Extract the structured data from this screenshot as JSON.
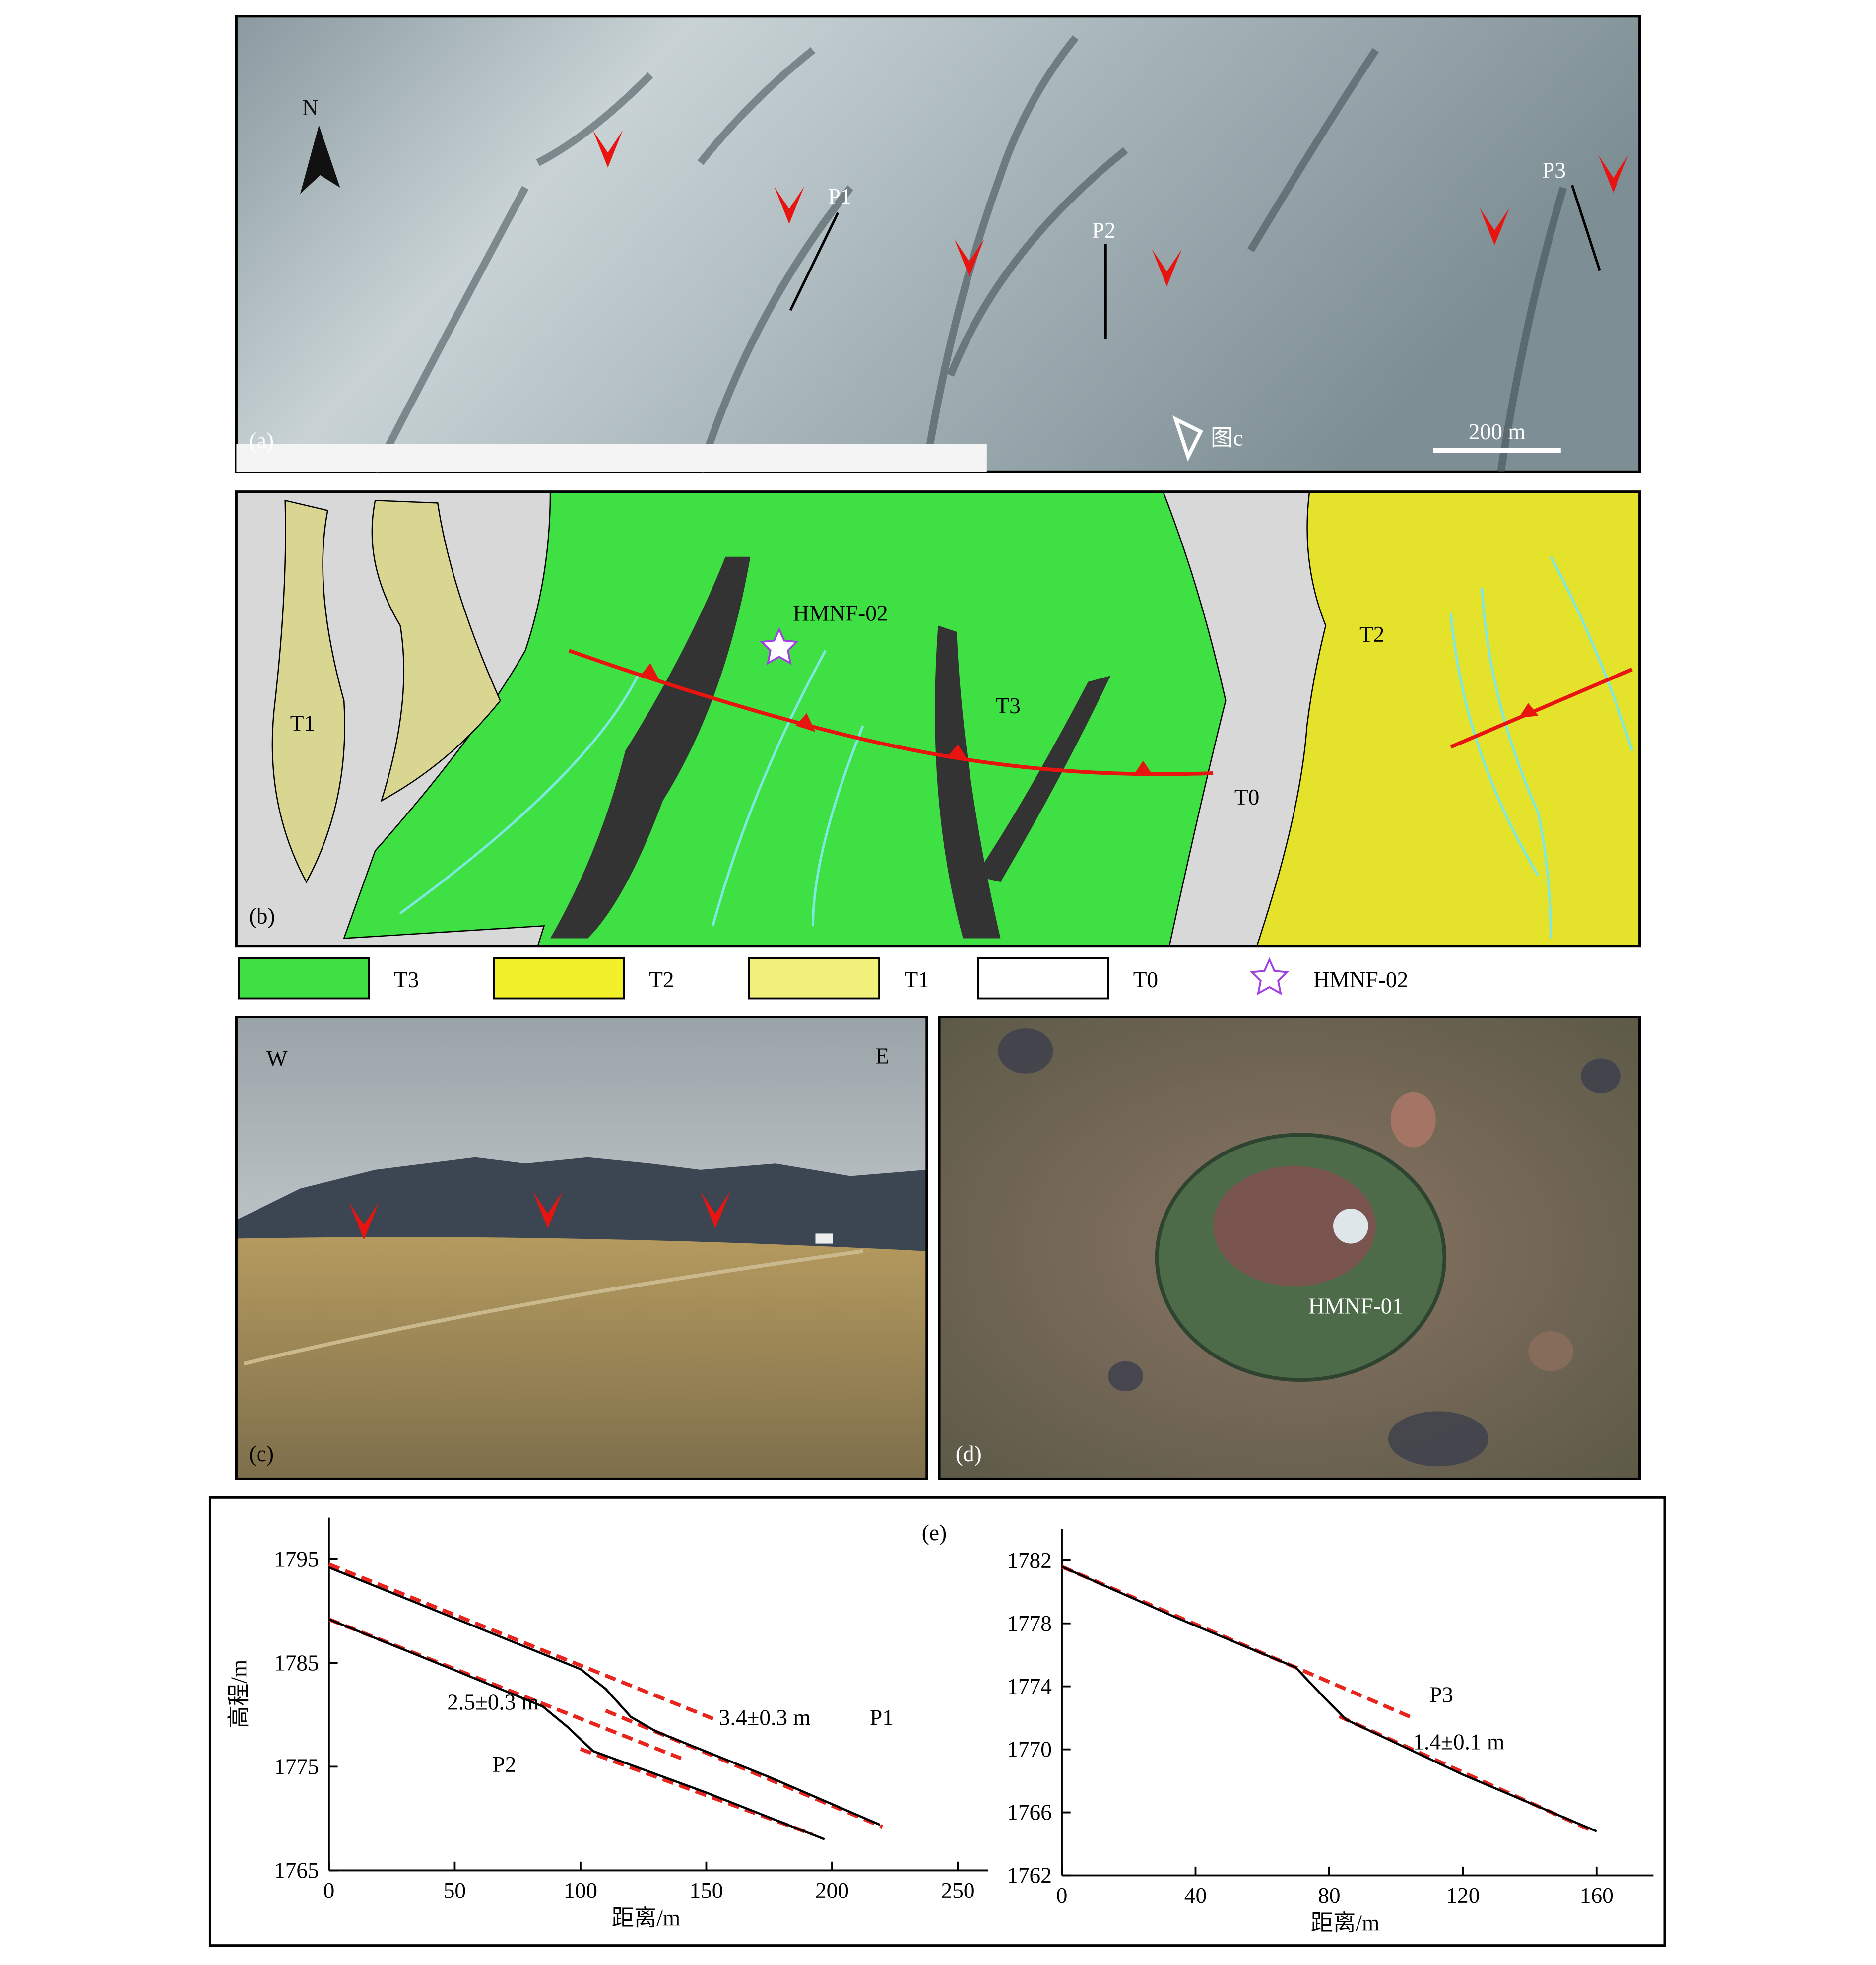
{
  "panels": {
    "a": {
      "label": "(a)",
      "north": "N",
      "profiles": [
        "P1",
        "P2",
        "P3"
      ],
      "photo": "图c",
      "scale": "200 m"
    },
    "b": {
      "label": "(b)",
      "units": [
        "T1",
        "T3",
        "T0",
        "T2"
      ],
      "sample": "HMNF-02"
    },
    "c": {
      "label": "(c)",
      "west": "W",
      "east": "E"
    },
    "d": {
      "label": "(d)",
      "sample": "HMNF-01"
    },
    "e": {
      "label": "(e)"
    }
  },
  "legend": [
    {
      "name": "T3",
      "color": "#3fe043"
    },
    {
      "name": "T2",
      "color": "#f2f02a"
    },
    {
      "name": "T1",
      "color": "#f1f07a"
    },
    {
      "name": "T0",
      "color": "#ffffff"
    },
    {
      "name": "HMNF-02",
      "color": "#a040e0"
    }
  ],
  "chart_data": [
    {
      "type": "line",
      "xlabel": "距离/m",
      "ylabel": "高程/m",
      "xlim": [
        0,
        262
      ],
      "ylim": [
        1765,
        1799
      ],
      "xticks": [
        0,
        50,
        100,
        150,
        200,
        250
      ],
      "yticks": [
        1765,
        1775,
        1785,
        1795
      ],
      "series": [
        {
          "name": "P1",
          "color": "#000000",
          "x": [
            0,
            50,
            100,
            110,
            120,
            130,
            175,
            219
          ],
          "values": [
            1794.2,
            1789.3,
            1784.4,
            1782.5,
            1779.8,
            1778.4,
            1774,
            1769.4
          ]
        },
        {
          "name": "P2",
          "color": "#000000",
          "x": [
            0,
            50,
            85,
            95,
            105,
            150,
            197
          ],
          "values": [
            1789.2,
            1784.3,
            1780.8,
            1778.8,
            1776.5,
            1772.5,
            1768
          ]
        }
      ],
      "fits": [
        {
          "color": "#e8241c",
          "x": [
            0,
            155
          ],
          "values": [
            1794.5,
            1779.4
          ]
        },
        {
          "color": "#e8241c",
          "x": [
            110,
            220
          ],
          "values": [
            1780.4,
            1769.2
          ]
        },
        {
          "color": "#e8241c",
          "x": [
            0,
            140
          ],
          "values": [
            1789.2,
            1775.8
          ]
        },
        {
          "color": "#e8241c",
          "x": [
            100,
            192
          ],
          "values": [
            1776.7,
            1768.5
          ]
        }
      ],
      "annotations": [
        "3.4±0.3 m",
        "P1",
        "2.5±0.3 m",
        "P2"
      ]
    },
    {
      "type": "line",
      "xlabel": "距离/m",
      "xlim": [
        0,
        177
      ],
      "ylim": [
        1762,
        1784
      ],
      "xticks": [
        0,
        40,
        80,
        120,
        160
      ],
      "yticks": [
        1762,
        1766,
        1770,
        1774,
        1778,
        1782
      ],
      "series": [
        {
          "name": "P3",
          "color": "#000000",
          "x": [
            0,
            35,
            70,
            78,
            85,
            120,
            160
          ],
          "values": [
            1781.6,
            1778.3,
            1775.2,
            1773.4,
            1771.9,
            1768.4,
            1764.8
          ]
        }
      ],
      "fits": [
        {
          "color": "#e8241c",
          "x": [
            0,
            105
          ],
          "values": [
            1781.6,
            1772.0
          ]
        },
        {
          "color": "#e8241c",
          "x": [
            83,
            158
          ],
          "values": [
            1772.1,
            1764.9
          ]
        }
      ],
      "annotations": [
        "P3",
        "1.4±0.1 m"
      ]
    }
  ]
}
